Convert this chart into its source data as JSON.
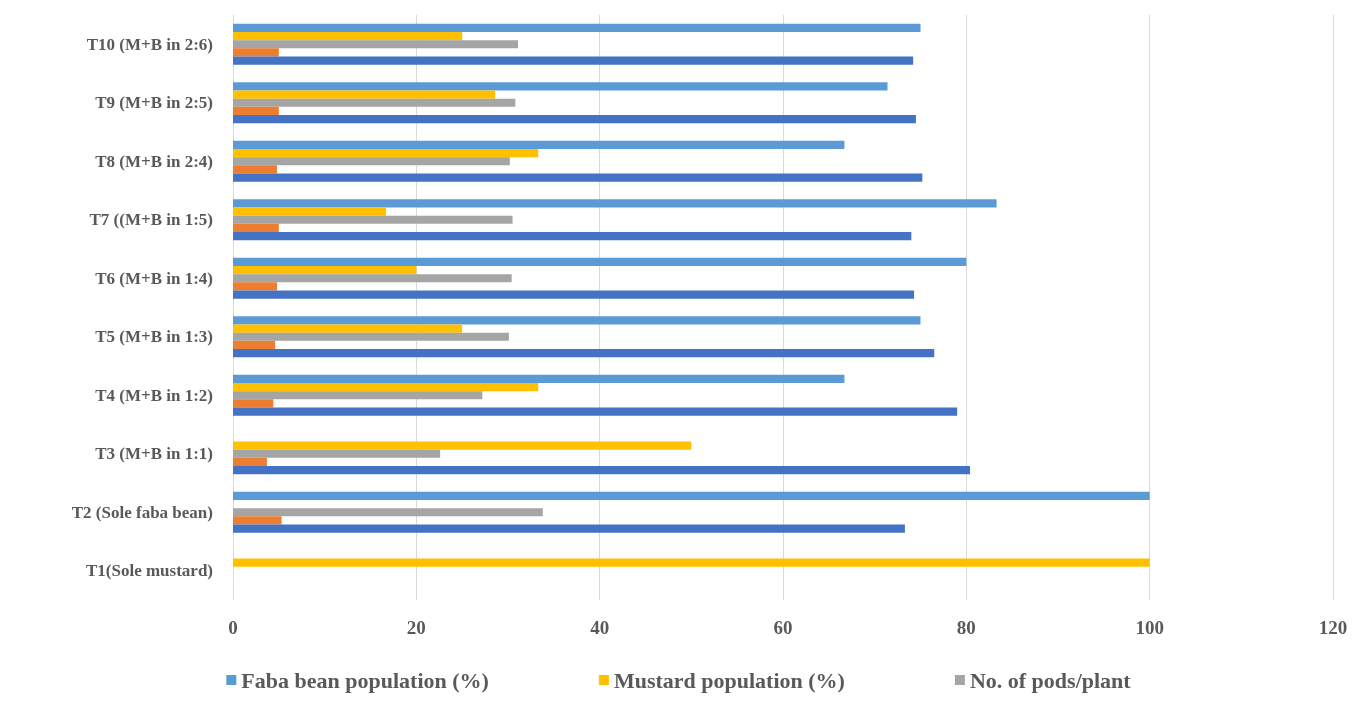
{
  "chart_data": {
    "type": "bar",
    "orientation": "horizontal",
    "categories": [
      "T10 (M+B in 2:6)",
      "T9 (M+B in 2:5)",
      "T8 (M+B in 2:4)",
      "T7 ((M+B in 1:5)",
      "T6 (M+B in 1:4)",
      "T5 (M+B in 1:3)",
      "T4 (M+B in 1:2)",
      "T3 (M+B in 1:1)",
      "T2 (Sole faba bean)",
      "T1(Sole mustard)"
    ],
    "series": [
      {
        "name": "Faba bean population (%)",
        "color": "#5b9bd5",
        "values": [
          75,
          71.4,
          66.7,
          83.3,
          80,
          75,
          66.7,
          null,
          100,
          null
        ]
      },
      {
        "name": "Mustard population (%)",
        "color": "#ffc000",
        "values": [
          25,
          28.6,
          33.3,
          16.7,
          20,
          25,
          33.3,
          50,
          null,
          100
        ]
      },
      {
        "name": "No. of pods/plant",
        "color": "#a5a5a5",
        "values": [
          31.1,
          30.8,
          30.2,
          30.5,
          30.4,
          30.1,
          27.2,
          22.6,
          33.8,
          null
        ]
      },
      {
        "color": "#ed7d31",
        "values": [
          5,
          5,
          4.8,
          5,
          4.8,
          4.6,
          4.4,
          3.7,
          5.3,
          null
        ]
      },
      {
        "color": "#4472c4",
        "values": [
          74.2,
          74.5,
          75.2,
          74,
          74.3,
          76.5,
          79,
          80.4,
          73.3,
          null
        ]
      }
    ],
    "xlim": [
      0,
      120
    ],
    "xticks": [
      0,
      20,
      40,
      60,
      80,
      100,
      120
    ],
    "grid": "x",
    "legend": "bottom"
  }
}
